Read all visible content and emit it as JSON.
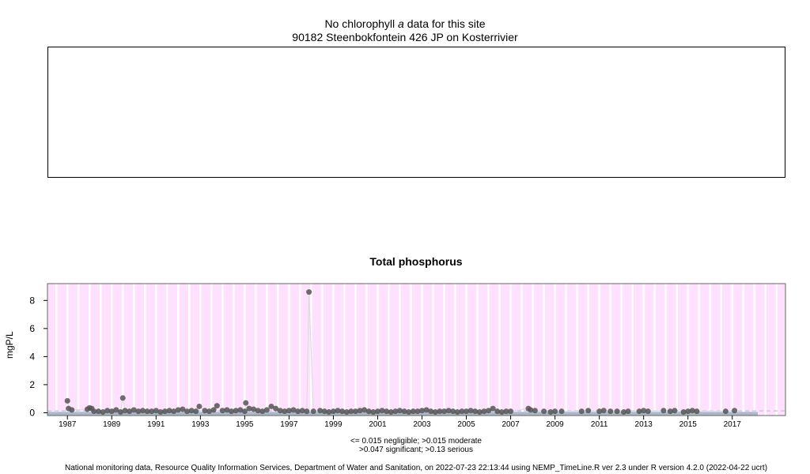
{
  "chlorophyll_panel": {
    "title_prefix": "No chlorophyll",
    "title_italic": "a",
    "title_suffix": "data for this site",
    "site": "90182 Steenbokfontein 426 JP on Kosterrivier"
  },
  "chart_data": {
    "type": "scatter",
    "title": "Total phosphorus",
    "ylabel": "mgP/L",
    "xlabel": "",
    "xlim": [
      1986.1,
      2019.4
    ],
    "ylim": [
      -0.2,
      9.2
    ],
    "yticks": [
      0,
      2,
      4,
      6,
      8
    ],
    "xticks": [
      "1987",
      "1989",
      "1991",
      "1993",
      "1995",
      "1997",
      "1999",
      "2001",
      "2003",
      "2005",
      "2007",
      "2009",
      "2011",
      "2013",
      "2015",
      "2017"
    ],
    "background_color": "#ffe0ff",
    "point_color": "#555555",
    "grid": true,
    "threshold_note_1": "<= 0.015 negligible; >0.015 moderate",
    "threshold_note_2": ">0.047 significant; >0.13 serious",
    "series": [
      {
        "x": [
          1987.0,
          1987.05,
          1987.2,
          1987.9,
          1988.0,
          1988.1,
          1988.2,
          1988.4,
          1988.6,
          1988.8,
          1989.0,
          1989.2,
          1989.4,
          1989.5,
          1989.6,
          1989.8,
          1990.0,
          1990.2,
          1990.4,
          1990.6,
          1990.8,
          1991.0,
          1991.2,
          1991.4,
          1991.6,
          1991.8,
          1992.0,
          1992.2,
          1992.4,
          1992.6,
          1992.8,
          1992.95,
          1993.2,
          1993.4,
          1993.6,
          1993.75,
          1994.0,
          1994.2,
          1994.4,
          1994.6,
          1994.8,
          1995.0,
          1995.05,
          1995.2,
          1995.4,
          1995.6,
          1995.8,
          1996.0,
          1996.2,
          1996.4,
          1996.6,
          1996.8,
          1997.0,
          1997.2,
          1997.4,
          1997.6,
          1997.8,
          1997.9,
          1998.1,
          1998.4,
          1998.6,
          1998.8,
          1999.0,
          1999.2,
          1999.4,
          1999.6,
          1999.8,
          2000.0,
          2000.2,
          2000.4,
          2000.6,
          2000.8,
          2001.0,
          2001.2,
          2001.4,
          2001.6,
          2001.8,
          2002.0,
          2002.2,
          2002.4,
          2002.6,
          2002.8,
          2003.0,
          2003.2,
          2003.4,
          2003.6,
          2003.8,
          2004.0,
          2004.2,
          2004.4,
          2004.6,
          2004.8,
          2005.0,
          2005.2,
          2005.4,
          2005.6,
          2005.8,
          2006.0,
          2006.2,
          2006.4,
          2006.6,
          2006.8,
          2007.0,
          2007.8,
          2007.9,
          2008.1,
          2008.5,
          2008.8,
          2009.0,
          2009.3,
          2010.2,
          2010.5,
          2011.0,
          2011.2,
          2011.5,
          2011.8,
          2012.1,
          2012.3,
          2012.8,
          2013.0,
          2013.2,
          2013.9,
          2014.2,
          2014.4,
          2014.8,
          2015.0,
          2015.2,
          2015.4,
          2016.7,
          2017.1
        ],
        "y": [
          0.85,
          0.3,
          0.2,
          0.25,
          0.35,
          0.3,
          0.1,
          0.1,
          0.05,
          0.15,
          0.1,
          0.2,
          0.05,
          1.05,
          0.15,
          0.1,
          0.2,
          0.1,
          0.15,
          0.1,
          0.1,
          0.15,
          0.05,
          0.1,
          0.15,
          0.1,
          0.2,
          0.25,
          0.1,
          0.15,
          0.1,
          0.45,
          0.15,
          0.1,
          0.2,
          0.5,
          0.15,
          0.2,
          0.1,
          0.15,
          0.2,
          0.1,
          0.7,
          0.3,
          0.25,
          0.15,
          0.1,
          0.2,
          0.45,
          0.3,
          0.15,
          0.1,
          0.15,
          0.2,
          0.1,
          0.15,
          0.1,
          8.6,
          0.1,
          0.15,
          0.1,
          0.05,
          0.1,
          0.15,
          0.1,
          0.05,
          0.1,
          0.1,
          0.15,
          0.2,
          0.1,
          0.05,
          0.1,
          0.15,
          0.1,
          0.05,
          0.1,
          0.15,
          0.1,
          0.05,
          0.1,
          0.1,
          0.15,
          0.2,
          0.1,
          0.05,
          0.1,
          0.1,
          0.15,
          0.1,
          0.05,
          0.1,
          0.1,
          0.15,
          0.1,
          0.05,
          0.1,
          0.15,
          0.3,
          0.1,
          0.05,
          0.1,
          0.1,
          0.3,
          0.2,
          0.15,
          0.1,
          0.05,
          0.1,
          0.1,
          0.1,
          0.15,
          0.1,
          0.15,
          0.1,
          0.1,
          0.05,
          0.1,
          0.1,
          0.15,
          0.1,
          0.15,
          0.1,
          0.15,
          0.05,
          0.1,
          0.15,
          0.1,
          0.1,
          0.15
        ]
      }
    ]
  },
  "footer": {
    "text": "National monitoring data, Resource Quality Information Services, Department of Water and Sanitation, on 2022-07-23 22:13:44 using NEMP_TimeLine.R ver 2.3 under R version 4.2.0 (2022-04-22 ucrt)"
  }
}
